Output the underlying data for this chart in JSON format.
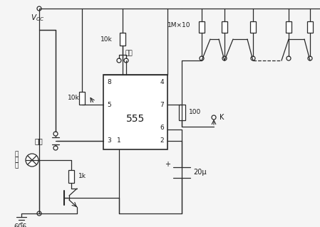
{
  "bg_color": "#f5f5f5",
  "line_color": "#2a2a2a",
  "text_color": "#1a1a1a",
  "title": "606.",
  "vcc_label": "$V_{CC}$",
  "r10k_top": "10k",
  "r10k_left": "10k",
  "r1k": "1k",
  "r100": "100",
  "r1mx10": "1M×10",
  "label_qianfu": "强复",
  "c_label": "20μ",
  "ic_label": "555",
  "k_label": "K",
  "start_label": "启动",
  "indicator_label_1": "指",
  "indicator_label_2": "示",
  "indicator_label_3": "灯",
  "fig_width": 4.49,
  "fig_height": 3.19,
  "dpi": 100
}
